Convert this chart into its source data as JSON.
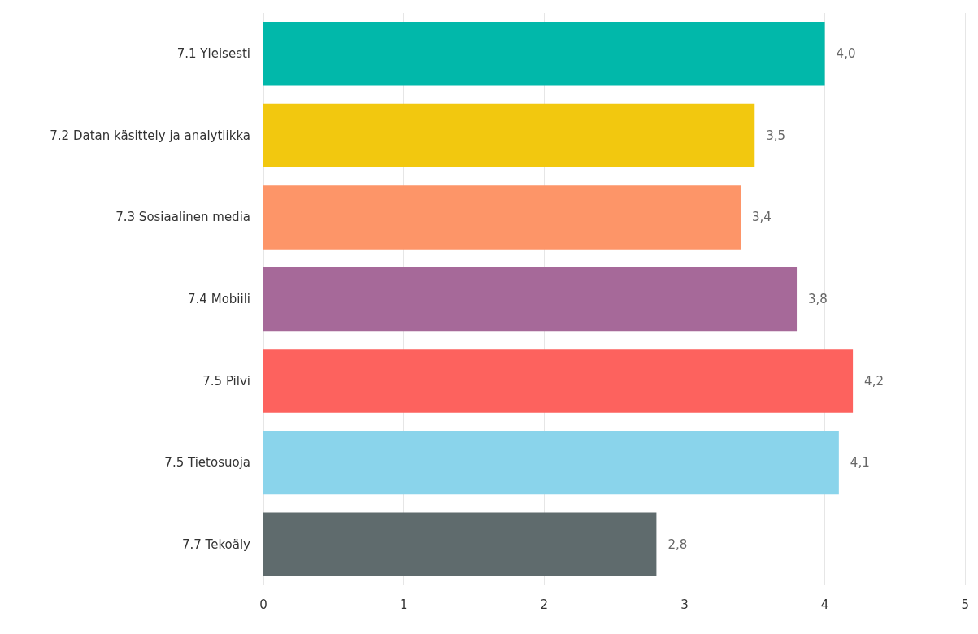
{
  "chart_data": {
    "type": "bar",
    "orientation": "horizontal",
    "categories": [
      "7.1 Yleisesti",
      "7.2 Datan käsittely ja analytiikka",
      "7.3 Sosiaalinen media",
      "7.4 Mobiili",
      "7.5 Pilvi",
      "7.5 Tietosuoja",
      "7.7 Tekoäly"
    ],
    "values": [
      4.0,
      3.5,
      3.4,
      3.8,
      4.2,
      4.1,
      2.8
    ],
    "colors": [
      "#01b8aa",
      "#f2c80f",
      "#fd9568",
      "#a66999",
      "#fd625e",
      "#8ad4eb",
      "#5f6b6d"
    ],
    "value_labels": [
      "4,0",
      "3,5",
      "3,4",
      "3,8",
      "4,2",
      "4,1",
      "2,8"
    ],
    "xlim": [
      0,
      5
    ],
    "xticks": [
      0,
      1,
      2,
      3,
      4,
      5
    ],
    "grid": "x"
  }
}
